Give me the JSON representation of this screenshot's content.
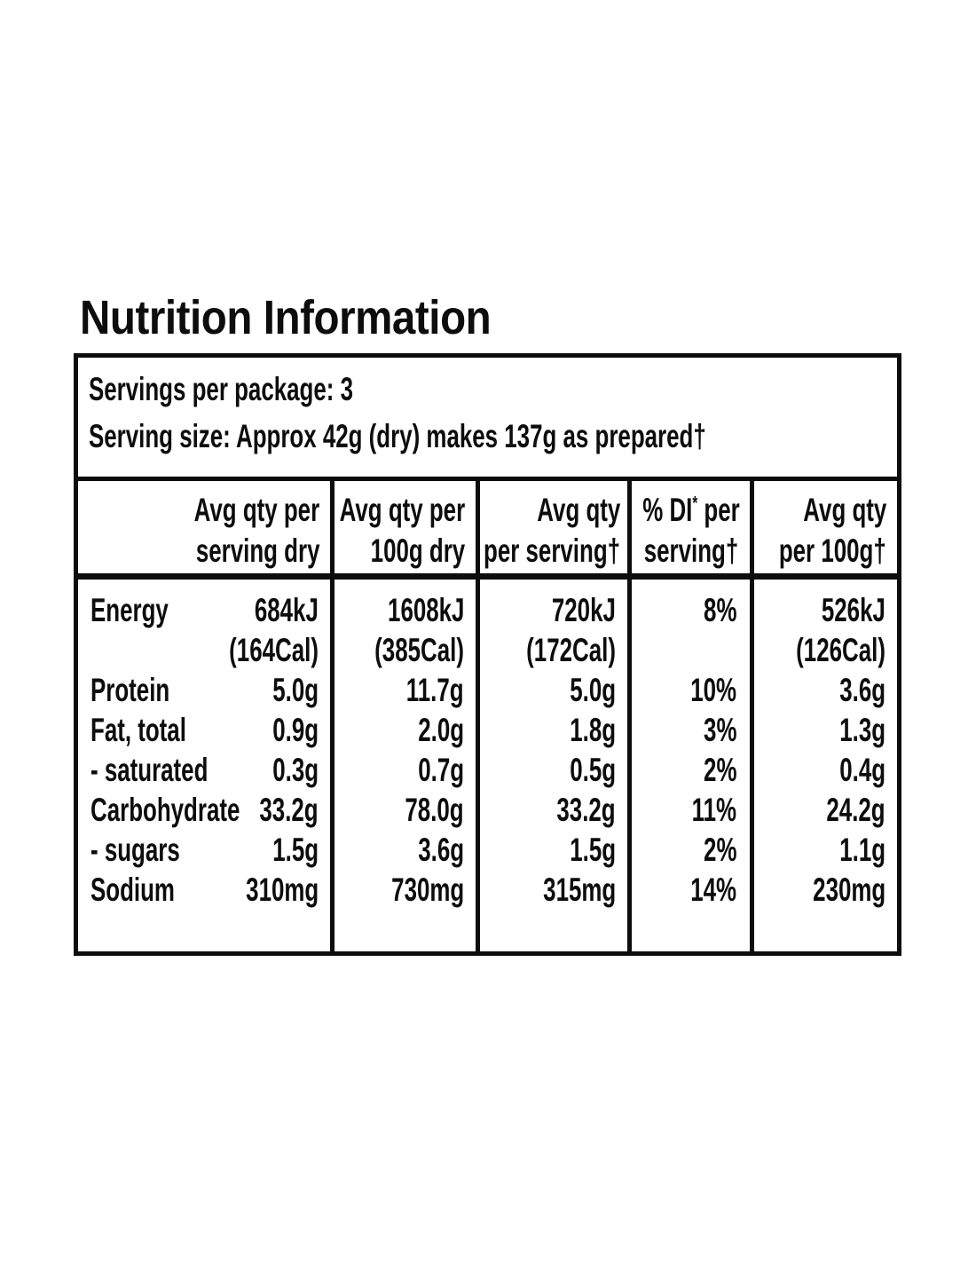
{
  "page": {
    "title": "Nutrition Information",
    "ink_color": "#0d0d0d",
    "background_color": "#ffffff"
  },
  "servings": {
    "per_package": "Servings per package: 3",
    "size": "Serving size: Approx 42g (dry) makes 137g as prepared†"
  },
  "table": {
    "headers": [
      {
        "line1": "Avg qty per",
        "line2": "serving dry"
      },
      {
        "line1": "Avg qty per",
        "line2": "100g dry"
      },
      {
        "line1": "Avg qty",
        "line2": "per serving†"
      },
      {
        "line1_a": "% DI",
        "sup": "*",
        "line1_b": " per",
        "line2": "serving†"
      },
      {
        "line1": "Avg qty",
        "line2": "per 100g†"
      }
    ],
    "rows": [
      {
        "nutrient": "Energy",
        "serving_dry": "684kJ",
        "serving_dry_cal": "(164Cal)",
        "per100_dry": "1608kJ",
        "per100_dry_cal": "(385Cal)",
        "per_serving": "720kJ",
        "per_serving_cal": "(172Cal)",
        "di": "8%",
        "per100": "526kJ",
        "per100_cal": "(126Cal)"
      },
      {
        "nutrient": "Protein",
        "serving_dry": "5.0g",
        "per100_dry": "11.7g",
        "per_serving": "5.0g",
        "di": "10%",
        "per100": "3.6g"
      },
      {
        "nutrient": "Fat, total",
        "serving_dry": "0.9g",
        "per100_dry": "2.0g",
        "per_serving": "1.8g",
        "di": "3%",
        "per100": "1.3g"
      },
      {
        "nutrient": "- saturated",
        "serving_dry": "0.3g",
        "per100_dry": "0.7g",
        "per_serving": "0.5g",
        "di": "2%",
        "per100": "0.4g"
      },
      {
        "nutrient": "Carbohydrate",
        "serving_dry": "33.2g",
        "per100_dry": "78.0g",
        "per_serving": "33.2g",
        "di": "11%",
        "per100": "24.2g"
      },
      {
        "nutrient": "- sugars",
        "serving_dry": "1.5g",
        "per100_dry": "3.6g",
        "per_serving": "1.5g",
        "di": "2%",
        "per100": "1.1g"
      },
      {
        "nutrient": "Sodium",
        "serving_dry": "310mg",
        "per100_dry": "730mg",
        "per_serving": "315mg",
        "di": "14%",
        "per100": "230mg"
      }
    ]
  }
}
